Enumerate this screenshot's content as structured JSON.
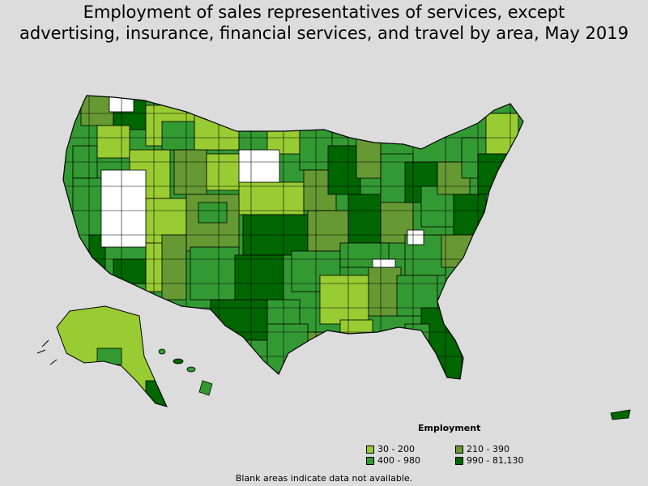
{
  "title": {
    "line1": "Employment of sales representatives of services, except",
    "line2": "advertising, insurance, financial services, and travel by area, May 2019"
  },
  "legend": {
    "title": "Employment",
    "items": [
      {
        "label": "30 - 200",
        "color": "#99cc33"
      },
      {
        "label": "400 - 980",
        "color": "#339933"
      },
      {
        "label": "210 - 390",
        "color": "#669933"
      },
      {
        "label": "990 - 81,130",
        "color": "#006600"
      }
    ]
  },
  "footnote": "Blank areas indicate data not available.",
  "colors": {
    "background": "#dcdcdc",
    "no_data": "#ffffff",
    "border": "#000000"
  }
}
